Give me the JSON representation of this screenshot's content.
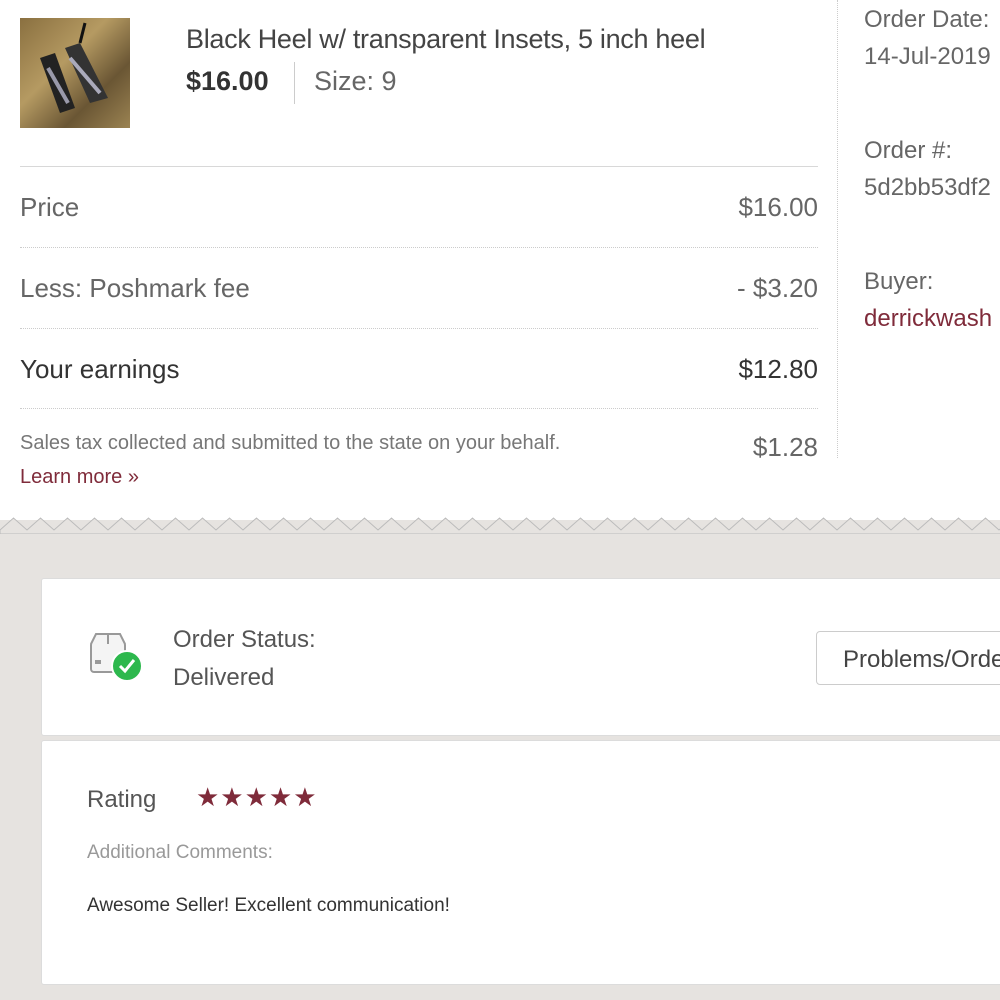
{
  "product": {
    "title": "Black Heel w/ transparent Insets, 5 inch heel",
    "price": "$16.00",
    "size": "Size: 9"
  },
  "breakdown": [
    {
      "label": "Price",
      "value": "$16.00"
    },
    {
      "label": "Less: Poshmark fee",
      "value": "- $3.20"
    },
    {
      "label": "Your earnings",
      "value": "$12.80"
    }
  ],
  "tax": {
    "text": "Sales tax collected and submitted to the state on your behalf.",
    "value": "$1.28",
    "learn_more": "Learn more »"
  },
  "order": {
    "date_label": "Order Date:",
    "date": "14-Jul-2019",
    "number_label": "Order #:",
    "number": "5d2bb53df2",
    "buyer_label": "Buyer:",
    "buyer": "derrickwash"
  },
  "status": {
    "label": "Order Status:",
    "value": "Delivered",
    "button": "Problems/Order",
    "icon": "package-delivered-icon",
    "check_color": "#2db84d"
  },
  "review": {
    "rating_label": "Rating",
    "stars": 5,
    "stars_text": "★★★★★",
    "comments_label": "Additional Comments:",
    "comment": "Awesome Seller! Excellent communication!"
  },
  "colors": {
    "accent": "#7f2b3a",
    "background": "#e6e3e0"
  }
}
